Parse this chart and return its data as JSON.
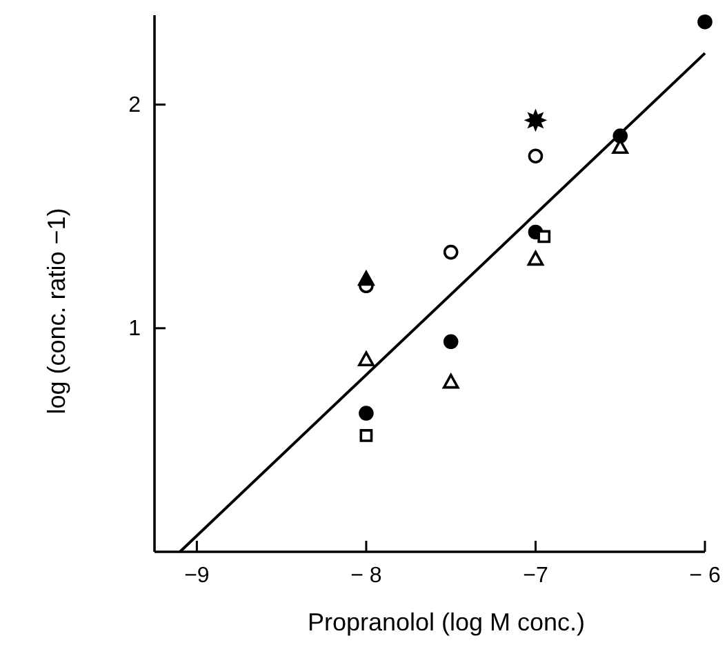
{
  "chart_data": {
    "type": "scatter",
    "xlabel": "Propranolol (log M conc.)",
    "ylabel": "log (conc. ratio −1)",
    "xlim": [
      -9.25,
      -6.0
    ],
    "ylim": [
      0,
      2.4
    ],
    "xticks": [
      {
        "value": -9,
        "label": "−9"
      },
      {
        "value": -8,
        "label": "− 8"
      },
      {
        "value": -7,
        "label": "−7"
      },
      {
        "value": -6,
        "label": "− 6"
      }
    ],
    "yticks": [
      1,
      2
    ],
    "grid": false,
    "series": [
      {
        "marker": "circle",
        "color": "#000000",
        "x": [
          -8,
          -7.5,
          -7,
          -6.5,
          -6
        ],
        "values": [
          0.62,
          0.94,
          1.43,
          1.86,
          2.37
        ]
      },
      {
        "marker": "circle",
        "color": "#ffffff",
        "x": [
          -8,
          -7.5,
          -7
        ],
        "values": [
          1.19,
          1.34,
          1.77
        ]
      },
      {
        "marker": "triangle",
        "color": "#ffffff",
        "x": [
          -8,
          -7.5,
          -7,
          -6.5
        ],
        "values": [
          0.86,
          0.76,
          1.31,
          1.81
        ]
      },
      {
        "marker": "triangle",
        "color": "#000000",
        "x": [
          -8
        ],
        "values": [
          1.22
        ]
      },
      {
        "marker": "square",
        "color": "#ffffff",
        "x": [
          -8,
          -6.95
        ],
        "values": [
          0.52,
          1.41
        ]
      },
      {
        "marker": "star",
        "color": "#000000",
        "x": [
          -7
        ],
        "values": [
          1.93
        ]
      },
      {
        "type": "line",
        "marker": "none",
        "line_style": "solid",
        "color": "#000000",
        "x": [
          -9.1,
          -6.0
        ],
        "values": [
          0,
          2.23
        ]
      }
    ]
  }
}
